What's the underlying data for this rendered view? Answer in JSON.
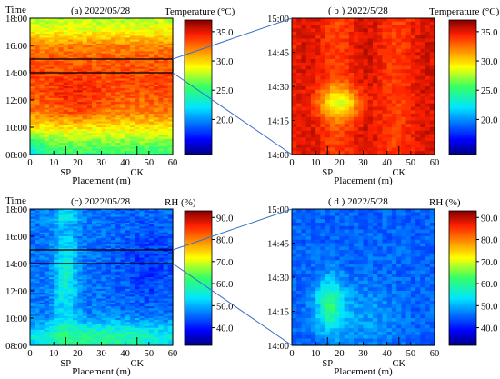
{
  "chart_data": [
    {
      "id": "a",
      "type": "heatmap",
      "title": "(a) 2022/05/28",
      "ylabel": "Time",
      "xlabel": "Placement (m)",
      "x_ticks": [
        0,
        10,
        20,
        30,
        40,
        50,
        60
      ],
      "x_tick_labels": [
        "0",
        "10",
        "20",
        "30",
        "40",
        "50",
        "60"
      ],
      "xlim": [
        0,
        60
      ],
      "y_tick_labels": [
        "08:00",
        "10:00",
        "12:00",
        "14:00",
        "16:00",
        "18:00"
      ],
      "ylim_hours": [
        8,
        18
      ],
      "markers": [
        {
          "label": "SP",
          "x": 15
        },
        {
          "label": "CK",
          "x": 45
        }
      ],
      "colorbar": {
        "label": "Temperature (°C)",
        "ticks": [
          "20.0",
          "25.0",
          "30.0",
          "35.0"
        ],
        "range": [
          14,
          37
        ]
      },
      "highlight_window_hours": [
        14,
        15
      ],
      "values_summary": "Warm 30-37 °C from about 11:00 to 16:00; cooler 22-27 °C in the early morning (08:00-10:00) and after 17:00"
    },
    {
      "id": "b",
      "type": "heatmap",
      "title": "( b ) 2022/5/28",
      "xlabel": "Placement (m)",
      "x_ticks": [
        0,
        10,
        20,
        30,
        40,
        50,
        60
      ],
      "x_tick_labels": [
        "0",
        "10",
        "20",
        "30",
        "40",
        "50",
        "60"
      ],
      "xlim": [
        0,
        60
      ],
      "y_tick_labels": [
        "14:00",
        "14:15",
        "14:30",
        "14:45",
        "15:00"
      ],
      "ylim_hours": [
        14,
        15
      ],
      "markers": [
        {
          "label": "SP",
          "x": 15
        },
        {
          "label": "CK",
          "x": 45
        }
      ],
      "colorbar": {
        "label": "Temperature (°C)",
        "ticks": [
          "20.0",
          "25.0",
          "30.0",
          "35.0"
        ],
        "range": [
          14,
          37
        ]
      },
      "values_summary": "Mostly 32-36 °C; cooler spot near x = 20 m around 14:20"
    },
    {
      "id": "c",
      "type": "heatmap",
      "title": "(c) 2022/05/28",
      "ylabel": "Time",
      "xlabel": "Placement (m)",
      "x_ticks": [
        0,
        10,
        20,
        30,
        40,
        50,
        60
      ],
      "x_tick_labels": [
        "0",
        "10",
        "20",
        "30",
        "40",
        "50",
        "60"
      ],
      "xlim": [
        0,
        60
      ],
      "y_tick_labels": [
        "08:00",
        "10:00",
        "12:00",
        "14:00",
        "16:00",
        "18:00"
      ],
      "ylim_hours": [
        8,
        18
      ],
      "markers": [
        {
          "label": "SP",
          "x": 15
        },
        {
          "label": "CK",
          "x": 45
        }
      ],
      "colorbar": {
        "label": "RH (%)",
        "ticks": [
          "40.0",
          "50.0",
          "60.0",
          "70.0",
          "80.0",
          "90.0"
        ],
        "range": [
          32,
          93
        ]
      },
      "highlight_window_hours": [
        14,
        15
      ],
      "values_summary": "RH mostly 40-50 %; higher (55-65 %) in the early morning and near SP (x = 15 m)"
    },
    {
      "id": "d",
      "type": "heatmap",
      "title": "( d ) 2022/5/28",
      "xlabel": "Placement (m)",
      "x_ticks": [
        0,
        10,
        20,
        30,
        40,
        50,
        60
      ],
      "x_tick_labels": [
        "0",
        "10",
        "20",
        "30",
        "40",
        "50",
        "60"
      ],
      "xlim": [
        0,
        60
      ],
      "y_tick_labels": [
        "14:00",
        "14:15",
        "14:30",
        "14:45",
        "15:00"
      ],
      "ylim_hours": [
        14,
        15
      ],
      "markers": [
        {
          "label": "SP",
          "x": 15
        },
        {
          "label": "CK",
          "x": 45
        }
      ],
      "colorbar": {
        "label": "RH (%)",
        "ticks": [
          "40.0",
          "50.0",
          "60.0",
          "70.0",
          "80.0",
          "90.0"
        ],
        "range": [
          32,
          93
        ]
      },
      "values_summary": "RH mostly 40-50 %; higher (55-60 %) near x = 15-20 m around 14:15-14:35"
    }
  ]
}
